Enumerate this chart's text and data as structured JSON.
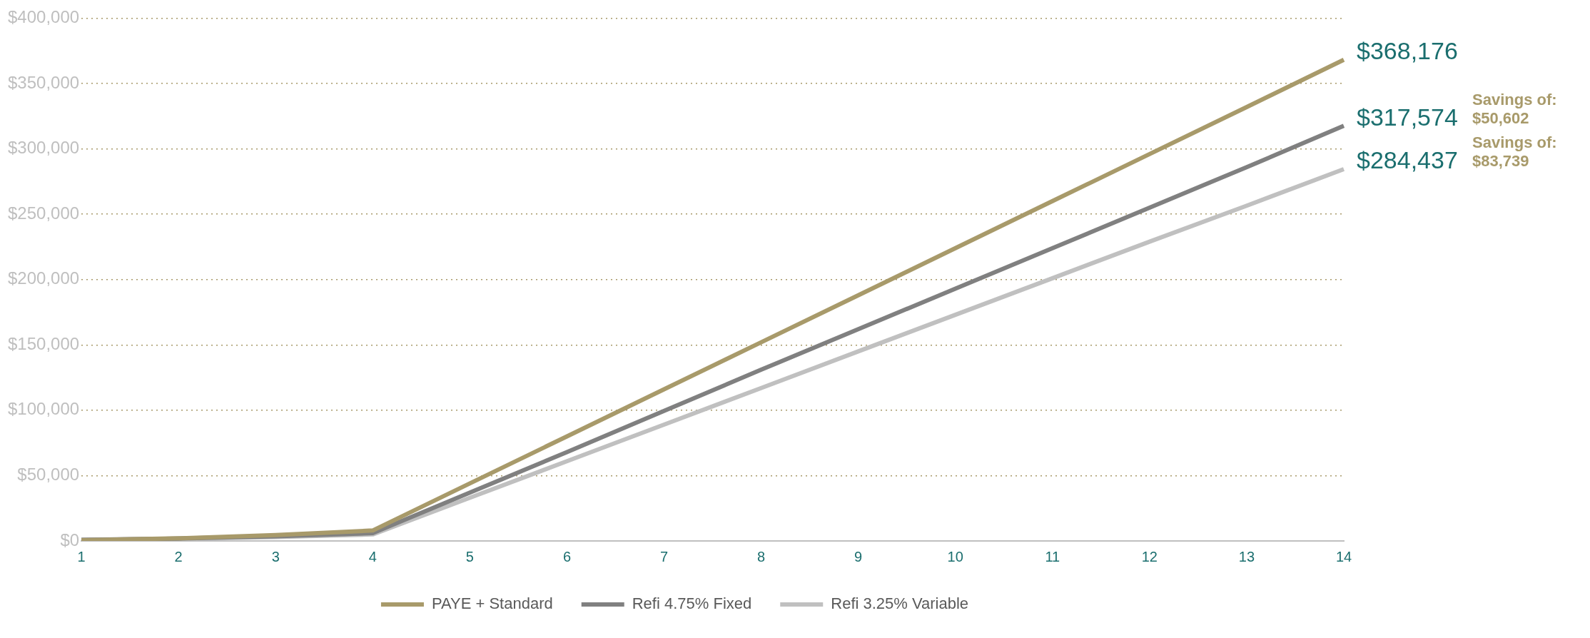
{
  "chart_data": {
    "type": "line",
    "categories": [
      "1",
      "2",
      "3",
      "4",
      "5",
      "6",
      "7",
      "8",
      "9",
      "10",
      "11",
      "12",
      "13",
      "14"
    ],
    "series": [
      {
        "name": "PAYE + Standard",
        "color": "#a89a6a",
        "values": [
          500,
          2000,
          4500,
          8000,
          44000,
          80000,
          116000,
          152000,
          188000,
          224000,
          260000,
          296000,
          332000,
          368176
        ],
        "value_labels": [
          null,
          null,
          null,
          null,
          null,
          null,
          null,
          null,
          null,
          null,
          null,
          null,
          null,
          "$368,176"
        ]
      },
      {
        "name": "Refi 4.75% Fixed",
        "color": "#808080",
        "values": [
          800,
          1800,
          3500,
          6000,
          37000,
          68000,
          99500,
          131000,
          162000,
          193000,
          224000,
          255000,
          286000,
          317574
        ],
        "value_labels": [
          null,
          null,
          null,
          null,
          null,
          null,
          null,
          null,
          null,
          null,
          null,
          null,
          null,
          "$317,574"
        ]
      },
      {
        "name": "Refi 3.25% Variable",
        "color": "#c0c0c0",
        "values": [
          1000,
          1800,
          3000,
          5000,
          33000,
          61000,
          89000,
          117000,
          145000,
          173000,
          201000,
          229000,
          256500,
          284437
        ],
        "value_labels": [
          null,
          null,
          null,
          null,
          null,
          null,
          null,
          null,
          null,
          null,
          null,
          null,
          null,
          "$284,437"
        ]
      }
    ],
    "ylim": [
      0,
      400000
    ],
    "yticks": [
      {
        "value": 0,
        "label": "$0"
      },
      {
        "value": 50000,
        "label": "$50,000"
      },
      {
        "value": 100000,
        "label": "$100,000"
      },
      {
        "value": 150000,
        "label": "$150,000"
      },
      {
        "value": 200000,
        "label": "$200,000"
      },
      {
        "value": 250000,
        "label": "$250,000"
      },
      {
        "value": 300000,
        "label": "$300,000"
      },
      {
        "value": 350000,
        "label": "$350,000"
      },
      {
        "value": 400000,
        "label": "$400,000"
      }
    ],
    "grid": "y",
    "legend": "bottom",
    "marker": "none",
    "line_style": "solid",
    "annotations": [
      "Savings of: $50,602",
      "Savings of: $83,739"
    ]
  }
}
